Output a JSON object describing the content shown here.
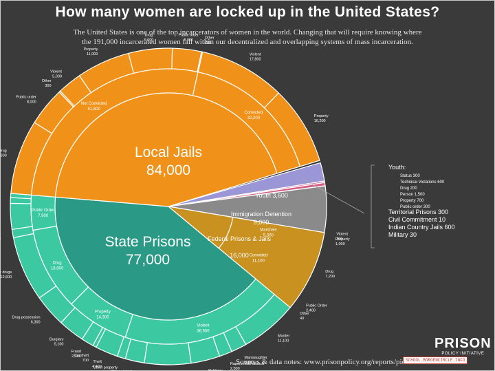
{
  "page": {
    "title": "How many women are locked up in the United States?",
    "subtitle_line1": "The United States is one of the top incarcerators of women in the world. Changing that will require knowing where",
    "subtitle_line2": "the 191,000 incarcerated women fall within our decentralized and overlapping systems of mass incarceration.",
    "sources": "Sources & data notes: www.prisonpolicy.org/reports/pie2019women.html",
    "logo_big": "PRISON",
    "logo_small": "POLICY INITIATIVE",
    "watermark": "SCHOOL.BORGENCIRCLE.INFO"
  },
  "colors": {
    "local": "#f0921a",
    "state": "#2a9a86",
    "state_outer": "#3cc9a2",
    "federal": "#c89120",
    "federal_outer": "#f1b21d",
    "immigration": "#8a8a8a",
    "youth": "#9b96d6",
    "small": "#d35d86",
    "line": "#ffffff"
  },
  "chart_data": {
    "type": "pie",
    "title": "How many women are locked up in the United States?",
    "total": 191000,
    "systems": [
      {
        "id": "local",
        "name": "Local Jails",
        "value": 84000,
        "value_label": "84,000"
      },
      {
        "id": "youth",
        "name": "Youth",
        "value": 3600,
        "value_label": "3,600"
      },
      {
        "id": "territorial",
        "name": "Territorial Prisons",
        "value": 300
      },
      {
        "id": "civil",
        "name": "Civil Commitment",
        "value": 10
      },
      {
        "id": "indian",
        "name": "Indian Country Jails",
        "value": 600
      },
      {
        "id": "military",
        "name": "Military",
        "value": 30
      },
      {
        "id": "immigration",
        "name": "Immigration Detention",
        "value": 9000,
        "value_label": "9,000"
      },
      {
        "id": "federal",
        "name": "Federal Prisons & Jails",
        "value": 16000,
        "value_label": "16,000"
      },
      {
        "id": "state",
        "name": "State Prisons",
        "value": 77000,
        "value_label": "77,000"
      }
    ],
    "middle_ring": [
      {
        "label": "Not Convicted",
        "value_label": "51,800",
        "value": 51800,
        "system": "local"
      },
      {
        "label": "Convicted",
        "value_label": "32,200",
        "value": 32200,
        "system": "local"
      },
      {
        "label": "Marshals",
        "value_label": "5,000",
        "value": 5000,
        "system": "federal"
      },
      {
        "label": "Convicted",
        "value_label": "11,100",
        "value": 11100,
        "system": "federal"
      },
      {
        "label": "Violent",
        "value_label": "36,900",
        "value": 36900,
        "system": "state"
      },
      {
        "label": "Property",
        "value_label": "14,300",
        "value": 14300,
        "system": "state"
      },
      {
        "label": "Drug",
        "value_label": "18,900",
        "value": 18900,
        "system": "state"
      },
      {
        "label": "Public Order",
        "value_label": "7,900",
        "value": 7900,
        "system": "state"
      }
    ],
    "outer_ring": [
      {
        "label": "Drug",
        "value_label": "15,300",
        "value": 15300,
        "system": "local"
      },
      {
        "label": "Public order",
        "value_label": "8,000",
        "value": 8000,
        "system": "local"
      },
      {
        "label": "Other",
        "value_label": "300",
        "value": 300,
        "system": "local"
      },
      {
        "label": "Violent",
        "value_label": "5,000",
        "value": 5000,
        "system": "local"
      },
      {
        "label": "Property",
        "value_label": "11,000",
        "value": 11000,
        "system": "local"
      },
      {
        "label": "Drug",
        "value_label": "9,000",
        "value": 9000,
        "system": "local"
      },
      {
        "label": "Public order",
        "value_label": "6,000",
        "value": 6000,
        "system": "local"
      },
      {
        "label": "Other",
        "value_label": "200",
        "value": 200,
        "system": "local"
      },
      {
        "label": "Violent",
        "value_label": "17,800",
        "value": 17800,
        "system": "local"
      },
      {
        "label": "Property",
        "value_label": "16,200",
        "value": 16200,
        "system": "local"
      },
      {
        "label": "Violent",
        "value_label": "300",
        "value": 300,
        "system": "federal"
      },
      {
        "label": "Property",
        "value_label": "1,000",
        "value": 1000,
        "system": "federal"
      },
      {
        "label": "Drug",
        "value_label": "7,200",
        "value": 7200,
        "system": "federal"
      },
      {
        "label": "Public Order",
        "value_label": "2,400",
        "value": 2400,
        "system": "federal"
      },
      {
        "label": "Other",
        "value_label": "40",
        "value": 40,
        "system": "federal"
      },
      {
        "label": "Murder",
        "value_label": "11,100",
        "value": 11100,
        "system": "state"
      },
      {
        "label": "Manslaughter",
        "value_label": "3,000",
        "value": 3000,
        "system": "state"
      },
      {
        "label": "Rape/sexual assault",
        "value_label": "2,500",
        "value": 2500,
        "system": "state"
      },
      {
        "label": "Robbery",
        "value_label": "5,600",
        "value": 5600,
        "system": "state"
      },
      {
        "label": "Assault",
        "value_label": "9,000",
        "value": 9000,
        "system": "state"
      },
      {
        "label": "Other violent",
        "value_label": "3,700",
        "value": 3700,
        "system": "state"
      },
      {
        "label": "Other property",
        "value_label": "1,600",
        "value": 1600,
        "system": "state"
      },
      {
        "label": "Theft",
        "value_label": "4,400",
        "value": 4400,
        "system": "state"
      },
      {
        "label": "Car theft",
        "value_label": "700",
        "value": 700,
        "system": "state"
      },
      {
        "label": "Fraud",
        "value_label": "2,400",
        "value": 2400,
        "system": "state"
      },
      {
        "label": "Burglary",
        "value_label": "5,100",
        "value": 5100,
        "system": "state"
      },
      {
        "label": "Drug possession",
        "value_label": "6,300",
        "value": 6300,
        "system": "state"
      },
      {
        "label": "Other drugs",
        "value_label": "12,600",
        "value": 12600,
        "system": "state"
      },
      {
        "label": "DUI",
        "value_label": "1,600",
        "value": 1600,
        "system": "state"
      },
      {
        "label": "Other Public Order",
        "value_label": "5,000",
        "value": 5000,
        "system": "state"
      },
      {
        "label": "Weapons",
        "value_label": "1,100",
        "value": 1100,
        "system": "state"
      },
      {
        "label": "Other",
        "value_label": "800",
        "value": 800,
        "system": "state"
      }
    ],
    "youth_breakdown": [
      {
        "label": "Status",
        "value": 300
      },
      {
        "label": "Technical Violations",
        "value": 600
      },
      {
        "label": "Drug",
        "value": 200
      },
      {
        "label": "Person",
        "value": 1500
      },
      {
        "label": "Property",
        "value": 700
      },
      {
        "label": "Public order",
        "value": 300
      }
    ],
    "legend_items": [
      {
        "label": "Youth:"
      },
      {
        "label": "Status 300"
      },
      {
        "label": "Technical Violations 600"
      },
      {
        "label": "Drug 200"
      },
      {
        "label": "Person 1,500"
      },
      {
        "label": "Property 700"
      },
      {
        "label": "Public order 300"
      },
      {
        "label": "Territorial Prisons 300"
      },
      {
        "label": "Civil Commitment 10"
      },
      {
        "label": "Indian Country Jails 600"
      },
      {
        "label": "Military 30"
      }
    ]
  }
}
